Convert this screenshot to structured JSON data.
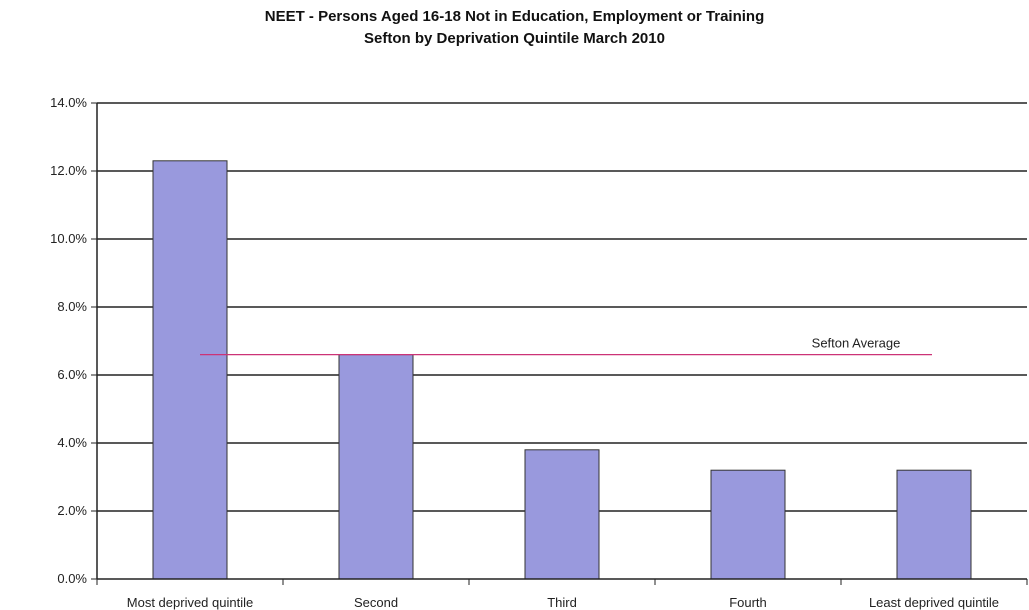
{
  "chart_data": {
    "type": "bar",
    "title": "NEET - Persons Aged 16-18 Not in Education, Employment or Training",
    "subtitle": "Sefton by Deprivation Quintile March 2010",
    "categories": [
      "Most deprived quintile",
      "Second",
      "Third",
      "Fourth",
      "Least deprived quintile"
    ],
    "values": [
      12.3,
      6.6,
      3.8,
      3.2,
      3.2
    ],
    "ylim": [
      0,
      14
    ],
    "yticks": [
      0,
      2,
      4,
      6,
      8,
      10,
      12,
      14
    ],
    "ytick_labels": [
      "0.0%",
      "2.0%",
      "4.0%",
      "6.0%",
      "8.0%",
      "10.0%",
      "12.0%",
      "14.0%"
    ],
    "grid": true,
    "reference_line": {
      "label": "Sefton Average",
      "value": 6.6
    }
  },
  "colors": {
    "bar_fill": "#9999dd",
    "bar_stroke": "#333333",
    "grid": "#222222",
    "reference_line": "#cc3377"
  }
}
